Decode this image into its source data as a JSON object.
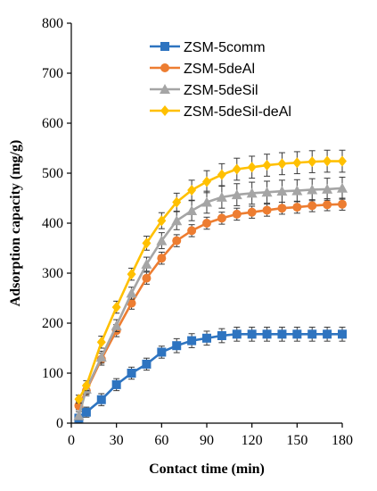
{
  "chart_data": {
    "type": "line",
    "xlabel": "Contact time (min)",
    "ylabel": "Adsorption capacity (mg/g)",
    "xlim": [
      0,
      180
    ],
    "ylim": [
      0,
      800
    ],
    "xticks": [
      0,
      30,
      60,
      90,
      120,
      150,
      180
    ],
    "yticks": [
      0,
      100,
      200,
      300,
      400,
      500,
      600,
      700,
      800
    ],
    "grid": false,
    "error_bars": true,
    "legend_position": "top-right",
    "x": [
      5,
      10,
      20,
      30,
      40,
      50,
      60,
      70,
      80,
      90,
      100,
      110,
      120,
      130,
      140,
      150,
      160,
      170,
      180
    ],
    "series": [
      {
        "name": "ZSM-5comm",
        "color": "#2E74C0",
        "marker": "square",
        "values": [
          10,
          22,
          47,
          77,
          100,
          118,
          142,
          155,
          165,
          170,
          175,
          178,
          178,
          178,
          178,
          178,
          178,
          178,
          178
        ],
        "errors": [
          8,
          10,
          12,
          12,
          12,
          12,
          12,
          14,
          14,
          14,
          14,
          14,
          14,
          14,
          14,
          14,
          14,
          14,
          14
        ]
      },
      {
        "name": "ZSM-5deAl",
        "color": "#ED7D31",
        "marker": "circle",
        "values": [
          35,
          65,
          128,
          185,
          240,
          290,
          330,
          365,
          385,
          400,
          410,
          418,
          422,
          426,
          430,
          432,
          435,
          437,
          438
        ],
        "errors": [
          8,
          10,
          12,
          12,
          12,
          12,
          12,
          12,
          12,
          12,
          12,
          12,
          12,
          12,
          12,
          12,
          12,
          12,
          12
        ]
      },
      {
        "name": "ZSM-5deSil",
        "color": "#A5A5A5",
        "marker": "triangle",
        "values": [
          15,
          68,
          132,
          195,
          260,
          318,
          365,
          405,
          425,
          442,
          452,
          457,
          460,
          462,
          464,
          465,
          467,
          468,
          470
        ],
        "errors": [
          8,
          10,
          12,
          12,
          12,
          14,
          16,
          18,
          20,
          22,
          22,
          22,
          22,
          22,
          22,
          22,
          22,
          22,
          22
        ]
      },
      {
        "name": "ZSM-5deSil-deAl",
        "color": "#FFC000",
        "marker": "diamond",
        "values": [
          48,
          75,
          162,
          232,
          298,
          360,
          405,
          442,
          466,
          483,
          497,
          508,
          512,
          516,
          519,
          521,
          523,
          524,
          524
        ],
        "errors": [
          8,
          10,
          12,
          12,
          12,
          14,
          16,
          18,
          20,
          22,
          22,
          22,
          22,
          22,
          22,
          22,
          22,
          22,
          22
        ]
      }
    ]
  }
}
